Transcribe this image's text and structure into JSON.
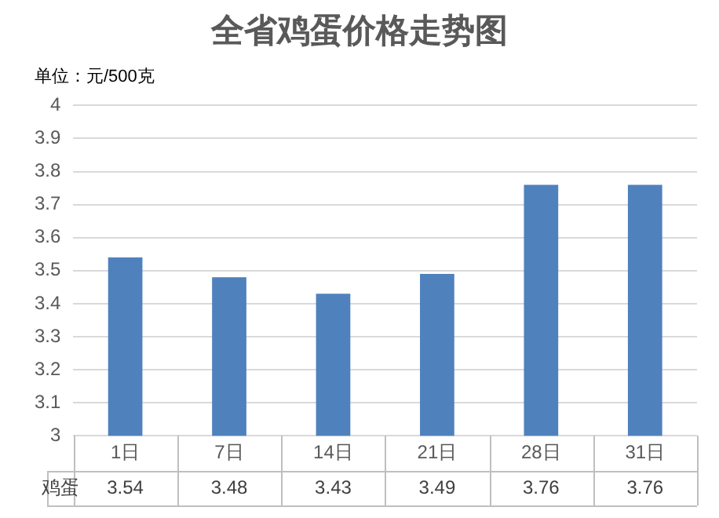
{
  "chart_data": {
    "type": "bar",
    "title": "全省鸡蛋价格走势图",
    "annotations": [
      "单位：元/500克"
    ],
    "categories": [
      "1日",
      "7日",
      "14日",
      "21日",
      "28日",
      "31日"
    ],
    "series": [
      {
        "name": "鸡蛋",
        "color": "#4f81bd",
        "values": [
          3.54,
          3.48,
          3.43,
          3.49,
          3.76,
          3.76
        ]
      }
    ],
    "ylim": [
      3,
      4
    ],
    "yticks": [
      3,
      3.1,
      3.2,
      3.3,
      3.4,
      3.5,
      3.6,
      3.7,
      3.8,
      3.9,
      4
    ],
    "grid": "y",
    "legend": false,
    "data_labels": true
  }
}
